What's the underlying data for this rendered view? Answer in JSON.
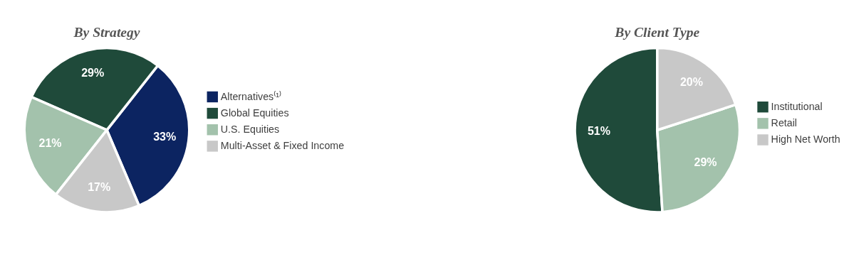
{
  "chart_data": [
    {
      "type": "pie",
      "title": "By Strategy",
      "categories": [
        "Alternatives⁽¹⁾",
        "Global Equities",
        "U.S. Equities",
        "Multi-Asset & Fixed Income"
      ],
      "values": [
        33,
        29,
        21,
        17
      ],
      "value_labels": [
        "33%",
        "29%",
        "21%",
        "17%"
      ],
      "colors": [
        "#0c2461",
        "#1f4a3a",
        "#a3c2ac",
        "#c8c8c8"
      ],
      "legend": "right"
    },
    {
      "type": "pie",
      "title": "By Client Type",
      "categories": [
        "Institutional",
        "Retail",
        "High Net Worth"
      ],
      "values": [
        51,
        29,
        20
      ],
      "value_labels": [
        "51%",
        "29%",
        "20%"
      ],
      "colors": [
        "#1f4a3a",
        "#a3c2ac",
        "#c8c8c8"
      ],
      "legend": "right"
    }
  ]
}
